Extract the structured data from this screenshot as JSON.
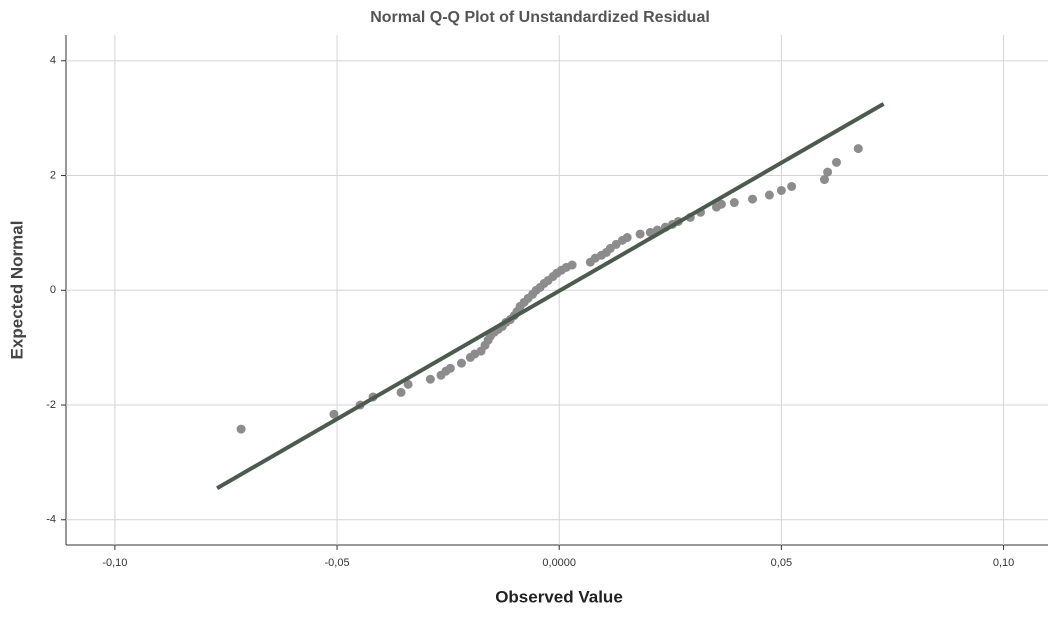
{
  "chart_data": {
    "type": "scatter",
    "title": "Normal Q-Q Plot of Unstandardized Residual",
    "x_label": "Observed Value",
    "y_label": "Expected Normal",
    "xlim": [
      -0.111,
      0.11
    ],
    "ylim": [
      -4.44,
      4.45
    ],
    "xticks": [
      {
        "value": -0.1,
        "label": "-0,10"
      },
      {
        "value": -0.05,
        "label": "-0,05"
      },
      {
        "value": 0,
        "label": "0,0000"
      },
      {
        "value": 0.05,
        "label": "0,05"
      },
      {
        "value": 0.1,
        "label": "0,10"
      }
    ],
    "yticks": [
      4,
      2,
      0,
      -2,
      -4
    ],
    "grid": true,
    "series": [
      {
        "color": "#8c8c8c",
        "x": [
          -0.0716,
          -0.0507,
          -0.0448,
          -0.0419,
          -0.0356,
          -0.034,
          -0.029,
          -0.0266,
          -0.0255,
          -0.0245,
          -0.022,
          -0.02,
          -0.019,
          -0.0176,
          -0.0167,
          -0.016,
          -0.0155,
          -0.0146,
          -0.0137,
          -0.0128,
          -0.012,
          -0.011,
          -0.0101,
          -0.0095,
          -0.0088,
          -0.0079,
          -0.007,
          -0.006,
          -0.0052,
          -0.0043,
          -0.0034,
          -0.0025,
          -0.0014,
          -0.0005,
          0.0005,
          0.0016,
          0.0029,
          0.007,
          0.0081,
          0.0095,
          0.0106,
          0.0115,
          0.0128,
          0.0142,
          0.0153,
          0.0182,
          0.0205,
          0.0221,
          0.0239,
          0.0255,
          0.0268,
          0.0295,
          0.0318,
          0.0354,
          0.0365,
          0.0394,
          0.0435,
          0.0473,
          0.05,
          0.0523,
          0.0597,
          0.0604,
          0.0624,
          0.0673
        ],
        "values": [
          -2.42,
          -2.16,
          -2.0,
          -1.86,
          -1.78,
          -1.64,
          -1.55,
          -1.48,
          -1.41,
          -1.36,
          -1.27,
          -1.17,
          -1.11,
          -1.06,
          -0.96,
          -0.87,
          -0.8,
          -0.73,
          -0.68,
          -0.63,
          -0.56,
          -0.51,
          -0.44,
          -0.37,
          -0.28,
          -0.21,
          -0.14,
          -0.07,
          0,
          0.05,
          0.12,
          0.17,
          0.24,
          0.3,
          0.35,
          0.4,
          0.44,
          0.49,
          0.56,
          0.61,
          0.66,
          0.73,
          0.8,
          0.87,
          0.92,
          0.98,
          1.01,
          1.05,
          1.1,
          1.15,
          1.2,
          1.27,
          1.36,
          1.45,
          1.5,
          1.53,
          1.59,
          1.66,
          1.74,
          1.81,
          1.93,
          2.06,
          2.23,
          2.47
        ]
      }
    ],
    "reference_line": {
      "color": "#4d5a50",
      "x": [
        -0.077,
        0.073
      ],
      "y": [
        -3.45,
        3.25
      ]
    }
  }
}
